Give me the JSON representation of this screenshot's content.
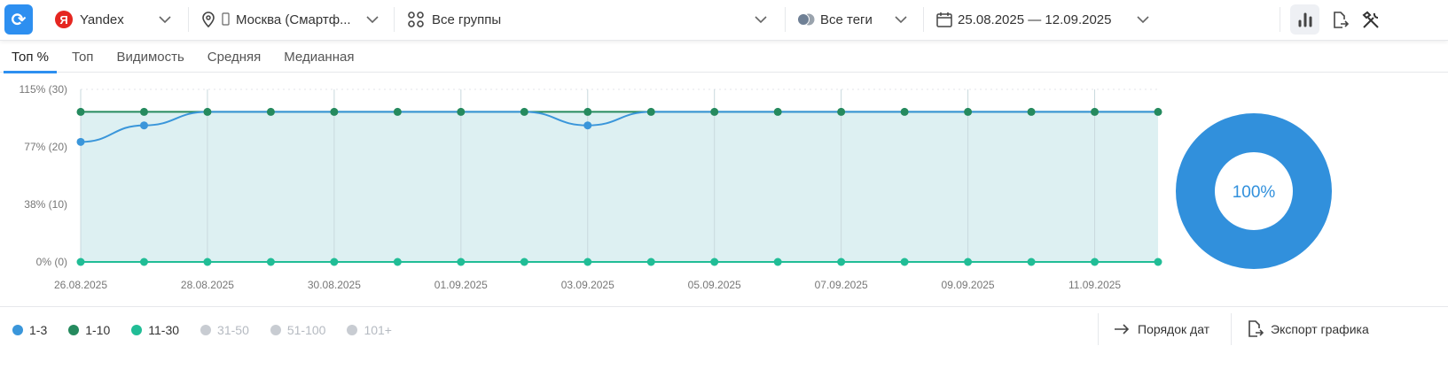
{
  "topbar": {
    "engine": "Yandex",
    "engine_logo": "Я",
    "region": "Москва (Смартф...",
    "groups": "Все группы",
    "tags": "Все теги",
    "date_range": "25.08.2025 — 12.09.2025"
  },
  "tabs": [
    {
      "label": "Топ %"
    },
    {
      "label": "Топ"
    },
    {
      "label": "Видимость"
    },
    {
      "label": "Средняя"
    },
    {
      "label": "Медианная"
    }
  ],
  "legend": [
    {
      "label": "1-3",
      "color": "#3a96da",
      "active": true
    },
    {
      "label": "1-10",
      "color": "#258a5e",
      "active": true
    },
    {
      "label": "11-30",
      "color": "#21bd96",
      "active": true
    },
    {
      "label": "31-50",
      "color": "#c8ccd2",
      "active": false
    },
    {
      "label": "51-100",
      "color": "#c8ccd2",
      "active": false
    },
    {
      "label": "101+",
      "color": "#c8ccd2",
      "active": false
    }
  ],
  "actions": {
    "date_order": "Порядок дат",
    "export": "Экспорт графика"
  },
  "chart_data": [
    {
      "type": "line",
      "ylim": [
        0,
        115
      ],
      "yticks": [
        {
          "v": 0,
          "label": "0% (0)"
        },
        {
          "v": 38.33,
          "label": "38% (10)"
        },
        {
          "v": 76.67,
          "label": "77% (20)"
        },
        {
          "v": 115,
          "label": "115% (30)"
        }
      ],
      "x": [
        "26.08.2025",
        "27.08.2025",
        "28.08.2025",
        "29.08.2025",
        "30.08.2025",
        "31.08.2025",
        "01.09.2025",
        "02.09.2025",
        "03.09.2025",
        "04.09.2025",
        "05.09.2025",
        "06.09.2025",
        "07.09.2025",
        "08.09.2025",
        "09.09.2025",
        "10.09.2025",
        "11.09.2025",
        "12.09.2025"
      ],
      "xtick_labels": [
        "26.08.2025",
        "28.08.2025",
        "30.08.2025",
        "01.09.2025",
        "03.09.2025",
        "05.09.2025",
        "07.09.2025",
        "09.09.2025",
        "11.09.2025"
      ],
      "series": [
        {
          "name": "1-10",
          "color": "#258a5e",
          "values": [
            100,
            100,
            100,
            100,
            100,
            100,
            100,
            100,
            100,
            100,
            100,
            100,
            100,
            100,
            100,
            100,
            100,
            100
          ]
        },
        {
          "name": "1-3",
          "color": "#3a96da",
          "values": [
            80,
            91,
            100,
            100,
            100,
            100,
            100,
            100,
            91,
            100,
            100,
            100,
            100,
            100,
            100,
            100,
            100,
            100
          ]
        },
        {
          "name": "11-30",
          "color": "#21bd96",
          "values": [
            0,
            0,
            0,
            0,
            0,
            0,
            0,
            0,
            0,
            0,
            0,
            0,
            0,
            0,
            0,
            0,
            0,
            0
          ]
        }
      ]
    },
    {
      "type": "pie",
      "values": [
        100
      ],
      "colors": [
        "#3190dc"
      ],
      "center_label": "100%"
    }
  ]
}
